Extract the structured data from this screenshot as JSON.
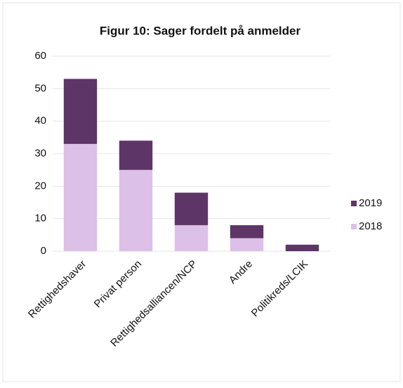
{
  "chart_data": {
    "type": "stacked_bar",
    "title": "Figur 10: Sager fordelt på anmelder",
    "categories": [
      "Rettighedshaver",
      "Privat person",
      "Rettighedsalliancen/NCP",
      "Andre",
      "Politikreds/LCIK"
    ],
    "series": [
      {
        "name": "2018",
        "color": "#dcc0e8",
        "values": [
          33,
          25,
          8,
          4,
          0
        ]
      },
      {
        "name": "2019",
        "color": "#5e3567",
        "values": [
          20,
          9,
          10,
          4,
          2
        ]
      }
    ],
    "ylim": [
      0,
      60
    ],
    "yticks": [
      0,
      10,
      20,
      30,
      40,
      50,
      60
    ],
    "grid": true,
    "legend": "right"
  }
}
